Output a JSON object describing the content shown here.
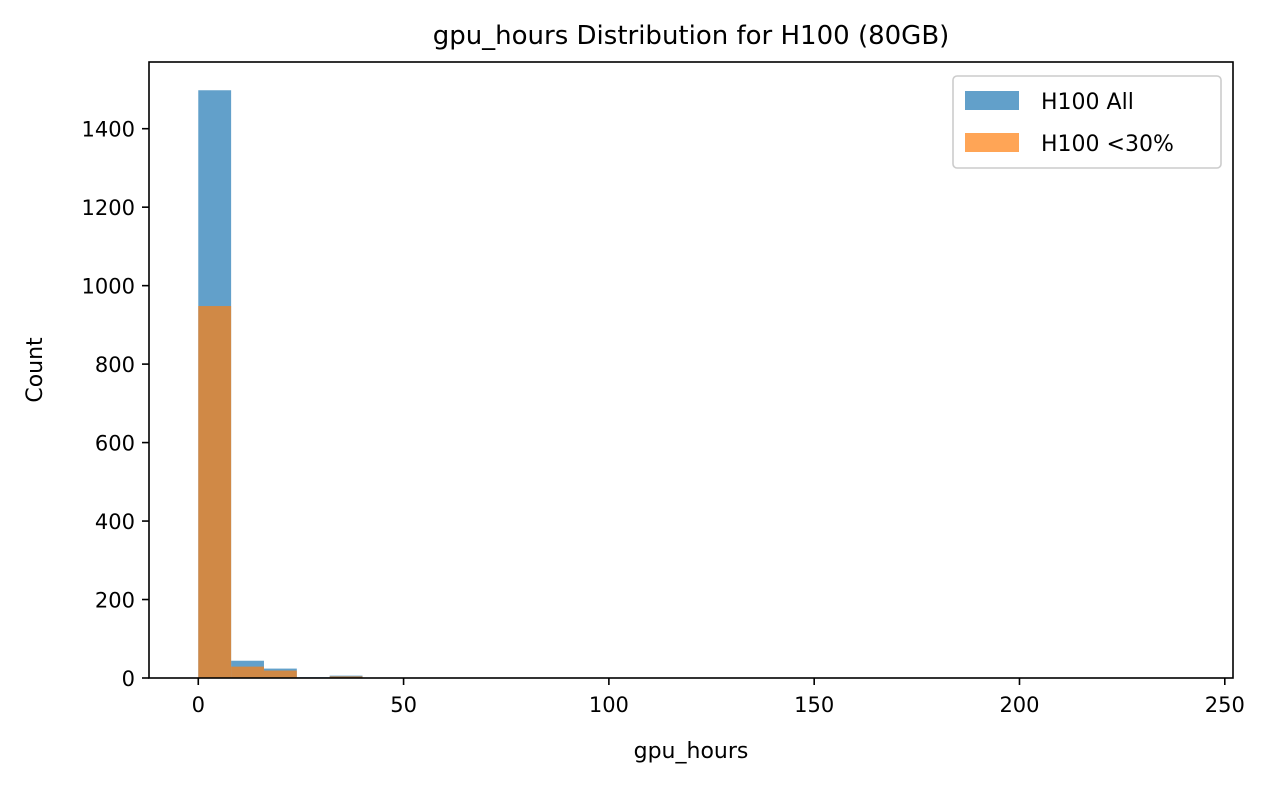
{
  "chart_data": {
    "type": "bar",
    "title": "gpu_hours Distribution for H100 (80GB)",
    "xlabel": "gpu_hours",
    "ylabel": "Count",
    "xlim": [
      -12,
      252
    ],
    "ylim": [
      0,
      1570
    ],
    "xticks": [
      0,
      50,
      100,
      150,
      200,
      250
    ],
    "yticks": [
      0,
      200,
      400,
      600,
      800,
      1000,
      1200,
      1400
    ],
    "legend_position": "top-right",
    "grid": false,
    "series": [
      {
        "name": "H100 All",
        "color": "#1f77b4",
        "opacity": 0.7,
        "bins": [
          {
            "x0": 0,
            "x1": 8,
            "value": 1498
          },
          {
            "x0": 8,
            "x1": 16,
            "value": 44
          },
          {
            "x0": 16,
            "x1": 24,
            "value": 24
          },
          {
            "x0": 24,
            "x1": 32,
            "value": 2
          },
          {
            "x0": 32,
            "x1": 40,
            "value": 6
          }
        ]
      },
      {
        "name": "H100 <30%",
        "color": "#ff7f0e",
        "opacity": 0.7,
        "bins": [
          {
            "x0": 0,
            "x1": 8,
            "value": 948
          },
          {
            "x0": 8,
            "x1": 16,
            "value": 29
          },
          {
            "x0": 16,
            "x1": 24,
            "value": 19
          },
          {
            "x0": 24,
            "x1": 32,
            "value": 1
          },
          {
            "x0": 32,
            "x1": 40,
            "value": 4
          }
        ]
      }
    ]
  }
}
